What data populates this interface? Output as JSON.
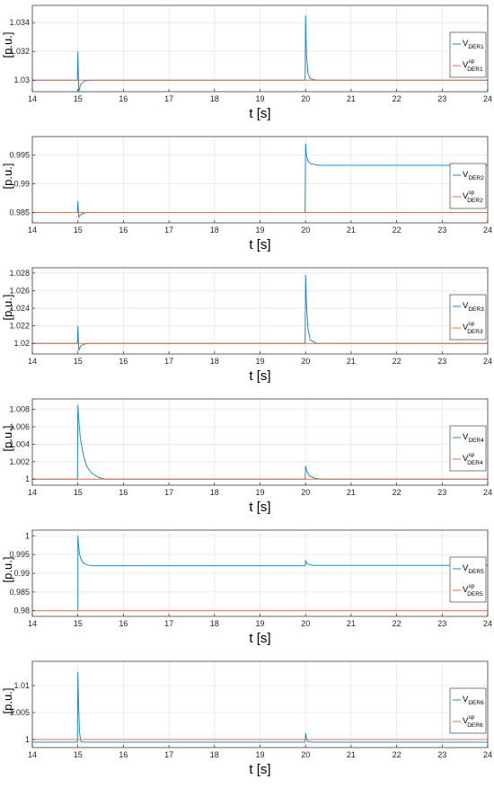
{
  "figure": {
    "colors": {
      "measured": "#1f8bd0",
      "setpoint": "#e8704a",
      "grid": "#e6e6e6",
      "axis": "#262626"
    }
  },
  "chart_data": [
    {
      "type": "line",
      "xlabel": "t [s]",
      "ylabel": "[p.u.]",
      "xlim": [
        14,
        24
      ],
      "ylim": [
        1.0292,
        1.0352
      ],
      "xticks": [
        14,
        15,
        16,
        17,
        18,
        19,
        20,
        21,
        22,
        23,
        24
      ],
      "yticks": [
        1.03,
        1.032,
        1.034
      ],
      "ytick_labels": [
        "1.03",
        "1.032",
        "1.034"
      ],
      "grid": true,
      "legend_position": "right",
      "series": [
        {
          "name": "V_DER1",
          "name_base": "V",
          "name_sub": "DER1",
          "role": "measured",
          "points": [
            [
              14,
              1.03
            ],
            [
              14.99,
              1.03
            ],
            [
              15.0,
              1.032
            ],
            [
              15.02,
              1.0292
            ],
            [
              15.06,
              1.0297
            ],
            [
              15.15,
              1.02995
            ],
            [
              15.3,
              1.03
            ],
            [
              19.99,
              1.03
            ],
            [
              20.0,
              1.0345
            ],
            [
              20.02,
              1.0318
            ],
            [
              20.05,
              1.0305
            ],
            [
              20.1,
              1.0301
            ],
            [
              20.25,
              1.03
            ],
            [
              24,
              1.03
            ]
          ]
        },
        {
          "name": "V^sp_DER1",
          "name_base": "V",
          "name_sup": "sp",
          "name_sub": "DER1",
          "role": "setpoint",
          "points": [
            [
              14,
              1.03
            ],
            [
              24,
              1.03
            ]
          ]
        }
      ]
    },
    {
      "type": "line",
      "xlabel": "t [s]",
      "ylabel": "[p.u.]",
      "xlim": [
        14,
        24
      ],
      "ylim": [
        0.9832,
        0.9982
      ],
      "xticks": [
        14,
        15,
        16,
        17,
        18,
        19,
        20,
        21,
        22,
        23,
        24
      ],
      "yticks": [
        0.985,
        0.99,
        0.995
      ],
      "ytick_labels": [
        "0.985",
        "0.99",
        "0.995"
      ],
      "grid": true,
      "legend_position": "right",
      "series": [
        {
          "name": "V_DER2",
          "name_base": "V",
          "name_sub": "DER2",
          "role": "measured",
          "points": [
            [
              14,
              0.985
            ],
            [
              14.99,
              0.985
            ],
            [
              15.0,
              0.987
            ],
            [
              15.02,
              0.9842
            ],
            [
              15.06,
              0.9846
            ],
            [
              15.15,
              0.98495
            ],
            [
              15.3,
              0.985
            ],
            [
              19.99,
              0.985
            ],
            [
              20.0,
              0.997
            ],
            [
              20.02,
              0.995
            ],
            [
              20.05,
              0.994
            ],
            [
              20.1,
              0.9935
            ],
            [
              20.3,
              0.9932
            ],
            [
              24,
              0.9932
            ]
          ]
        },
        {
          "name": "V^sp_DER2",
          "name_base": "V",
          "name_sup": "sp",
          "name_sub": "DER2",
          "role": "setpoint",
          "points": [
            [
              14,
              0.985
            ],
            [
              24,
              0.985
            ]
          ]
        }
      ]
    },
    {
      "type": "line",
      "xlabel": "t [s]",
      "ylabel": "[p.u.]",
      "xlim": [
        14,
        24
      ],
      "ylim": [
        1.0188,
        1.0286
      ],
      "xticks": [
        14,
        15,
        16,
        17,
        18,
        19,
        20,
        21,
        22,
        23,
        24
      ],
      "yticks": [
        1.02,
        1.022,
        1.024,
        1.026,
        1.028
      ],
      "ytick_labels": [
        "1.02",
        "1.022",
        "1.024",
        "1.026",
        "1.028"
      ],
      "grid": true,
      "legend_position": "right",
      "series": [
        {
          "name": "V_DER3",
          "name_base": "V",
          "name_sub": "DER3",
          "role": "measured",
          "points": [
            [
              14,
              1.02
            ],
            [
              14.99,
              1.02
            ],
            [
              15.0,
              1.022
            ],
            [
              15.02,
              1.0192
            ],
            [
              15.06,
              1.0197
            ],
            [
              15.15,
              1.01995
            ],
            [
              15.3,
              1.02
            ],
            [
              19.99,
              1.02
            ],
            [
              20.0,
              1.0278
            ],
            [
              20.02,
              1.0245
            ],
            [
              20.05,
              1.0218
            ],
            [
              20.1,
              1.0204
            ],
            [
              20.25,
              1.02
            ],
            [
              24,
              1.02
            ]
          ]
        },
        {
          "name": "V^sp_DER3",
          "name_base": "V",
          "name_sup": "sp",
          "name_sub": "DER3",
          "role": "setpoint",
          "points": [
            [
              14,
              1.02
            ],
            [
              24,
              1.02
            ]
          ]
        }
      ]
    },
    {
      "type": "line",
      "xlabel": "t [s]",
      "ylabel": "[p.u.]",
      "xlim": [
        14,
        24
      ],
      "ylim": [
        0.9993,
        1.0092
      ],
      "xticks": [
        14,
        15,
        16,
        17,
        18,
        19,
        20,
        21,
        22,
        23,
        24
      ],
      "yticks": [
        1,
        1.002,
        1.004,
        1.006,
        1.008
      ],
      "ytick_labels": [
        "1",
        "1.002",
        "1.004",
        "1.006",
        "1.008"
      ],
      "grid": true,
      "legend_position": "right",
      "series": [
        {
          "name": "V_DER4",
          "name_base": "V",
          "name_sub": "DER4",
          "role": "measured",
          "points": [
            [
              14,
              1.0
            ],
            [
              14.99,
              1.0
            ],
            [
              15.0,
              1.0085
            ],
            [
              15.03,
              1.006
            ],
            [
              15.06,
              1.0045
            ],
            [
              15.1,
              1.0033
            ],
            [
              15.15,
              1.0022
            ],
            [
              15.2,
              1.0014
            ],
            [
              15.3,
              1.0007
            ],
            [
              15.45,
              1.0002
            ],
            [
              15.6,
              1.0
            ],
            [
              19.99,
              1.0
            ],
            [
              20.0,
              1.0015
            ],
            [
              20.03,
              1.0009
            ],
            [
              20.08,
              1.0004
            ],
            [
              20.2,
              1.0001
            ],
            [
              20.35,
              1.0
            ],
            [
              24,
              1.0
            ]
          ]
        },
        {
          "name": "V^sp_DER4",
          "name_base": "V",
          "name_sup": "sp",
          "name_sub": "DER4",
          "role": "setpoint",
          "points": [
            [
              14,
              1.0
            ],
            [
              24,
              1.0
            ]
          ]
        }
      ]
    },
    {
      "type": "line",
      "xlabel": "t [s]",
      "ylabel": "[p.u.]",
      "xlim": [
        14,
        24
      ],
      "ylim": [
        0.9785,
        1.0015
      ],
      "xticks": [
        14,
        15,
        16,
        17,
        18,
        19,
        20,
        21,
        22,
        23,
        24
      ],
      "yticks": [
        0.98,
        0.985,
        0.99,
        0.995,
        1
      ],
      "ytick_labels": [
        "0.98",
        "0.985",
        "0.99",
        "0.995",
        "1"
      ],
      "grid": true,
      "legend_position": "right",
      "series": [
        {
          "name": "V_DER5",
          "name_base": "V",
          "name_sub": "DER5",
          "role": "measured",
          "points": [
            [
              15.0,
              0.98
            ],
            [
              15.0,
              1.0
            ],
            [
              15.03,
              0.9955
            ],
            [
              15.06,
              0.994
            ],
            [
              15.1,
              0.993
            ],
            [
              15.2,
              0.9922
            ],
            [
              15.35,
              0.992
            ],
            [
              19.99,
              0.992
            ],
            [
              20.0,
              0.9933
            ],
            [
              20.04,
              0.9925
            ],
            [
              20.15,
              0.9921
            ],
            [
              20.3,
              0.9921
            ],
            [
              24,
              0.9921
            ]
          ]
        },
        {
          "name": "V^sp_DER5",
          "name_base": "V",
          "name_sup": "sp",
          "name_sub": "DER5",
          "role": "setpoint",
          "points": [
            [
              14,
              0.98
            ],
            [
              24,
              0.98
            ]
          ]
        }
      ]
    },
    {
      "type": "line",
      "xlabel": "t [s]",
      "ylabel": "[p.u.]",
      "xlim": [
        14,
        24
      ],
      "ylim": [
        0.9985,
        1.0145
      ],
      "xticks": [
        14,
        15,
        16,
        17,
        18,
        19,
        20,
        21,
        22,
        23,
        24
      ],
      "yticks": [
        1,
        1.005,
        1.01
      ],
      "ytick_labels": [
        "1",
        "1.005",
        "1.01"
      ],
      "grid": true,
      "legend_position": "right",
      "series": [
        {
          "name": "V_DER6",
          "name_base": "V",
          "name_sub": "DER6",
          "role": "measured",
          "points": [
            [
              14,
              0.9995
            ],
            [
              14.99,
              0.9995
            ],
            [
              15.0,
              1.0125
            ],
            [
              15.02,
              1.005
            ],
            [
              15.04,
              1.001
            ],
            [
              15.07,
              0.9996
            ],
            [
              15.15,
              0.9995
            ],
            [
              19.99,
              0.9995
            ],
            [
              20.0,
              1.0012
            ],
            [
              20.02,
              1.0002
            ],
            [
              20.05,
              0.9996
            ],
            [
              20.15,
              0.9995
            ],
            [
              24,
              0.9995
            ]
          ]
        },
        {
          "name": "V^sp_DER6",
          "name_base": "V",
          "name_sup": "sp",
          "name_sub": "DER6",
          "role": "setpoint",
          "points": [
            [
              14,
              1.0
            ],
            [
              24,
              1.0
            ]
          ]
        }
      ]
    }
  ]
}
